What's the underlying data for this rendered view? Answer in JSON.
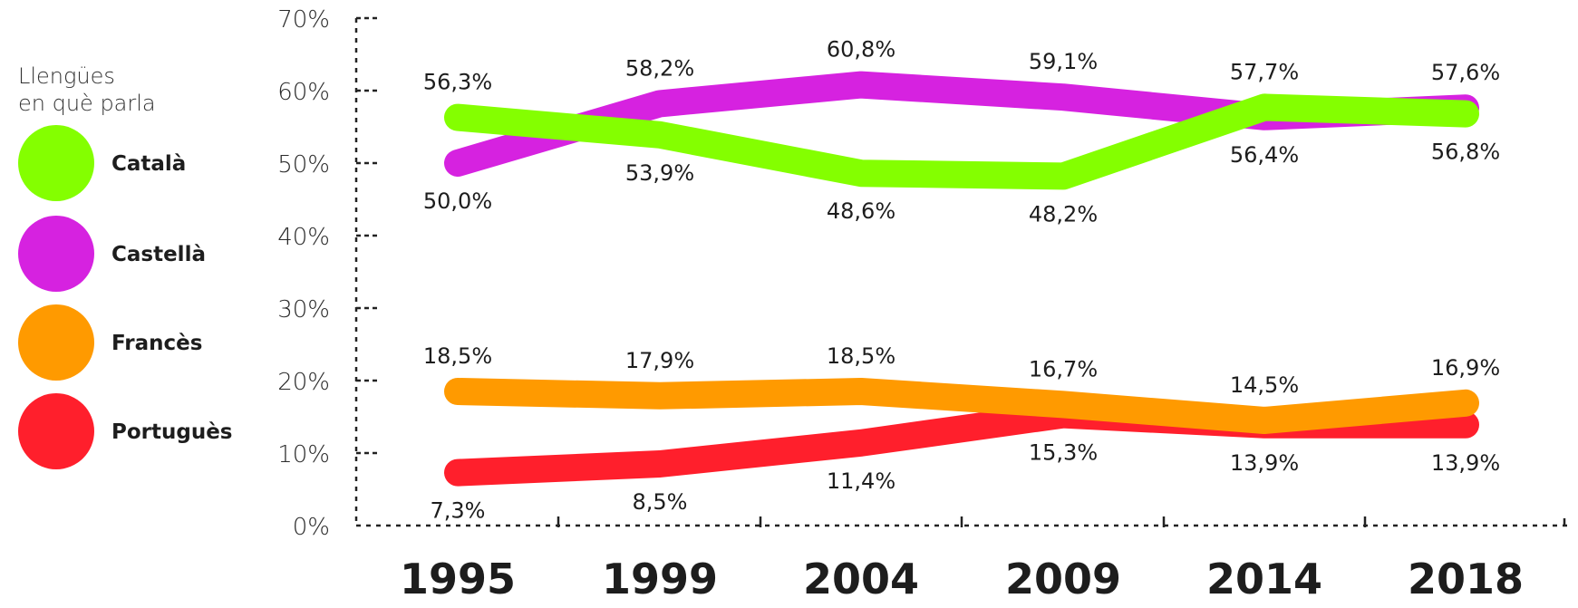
{
  "chart_data": {
    "type": "line",
    "legend_title_lines": [
      "Llengües",
      "en què parla"
    ],
    "x": [
      "1995",
      "1999",
      "2004",
      "2009",
      "2014",
      "2018"
    ],
    "y_ticks": [
      "0%",
      "10%",
      "20%",
      "30%",
      "40%",
      "50%",
      "60%",
      "70%"
    ],
    "ylim": [
      0,
      70
    ],
    "grid": false,
    "legend_position": "left",
    "series": [
      {
        "name": "Català",
        "color": "#84ff00",
        "values": [
          56.3,
          53.9,
          48.6,
          48.2,
          57.7,
          56.8
        ],
        "labels": [
          "56,3%",
          "53,9%",
          "48,6%",
          "48,2%",
          "57,7%",
          "56,8%"
        ],
        "label_side": [
          "above",
          "below",
          "below",
          "below",
          "above",
          "below"
        ]
      },
      {
        "name": "Castellà",
        "color": "#d622e0",
        "values": [
          50.0,
          58.2,
          60.8,
          59.1,
          56.4,
          57.6
        ],
        "labels": [
          "50,0%",
          "58,2%",
          "60,8%",
          "59,1%",
          "56,4%",
          "57,6%"
        ],
        "label_side": [
          "below",
          "above",
          "above",
          "above",
          "below",
          "above"
        ]
      },
      {
        "name": "Francès",
        "color": "#ff9a00",
        "values": [
          18.5,
          17.9,
          18.5,
          16.7,
          14.5,
          16.9
        ],
        "labels": [
          "18,5%",
          "17,9%",
          "18,5%",
          "16,7%",
          "14,5%",
          "16,9%"
        ],
        "label_side": [
          "above",
          "above",
          "above",
          "above",
          "above",
          "above"
        ]
      },
      {
        "name": "Portuguès",
        "color": "#ff1f2c",
        "values": [
          7.3,
          8.5,
          11.4,
          15.3,
          13.9,
          13.9
        ],
        "labels": [
          "7,3%",
          "8,5%",
          "11,4%",
          "15,3%",
          "13,9%",
          "13,9%"
        ],
        "label_side": [
          "below",
          "below",
          "below",
          "below",
          "below",
          "below"
        ]
      }
    ]
  }
}
